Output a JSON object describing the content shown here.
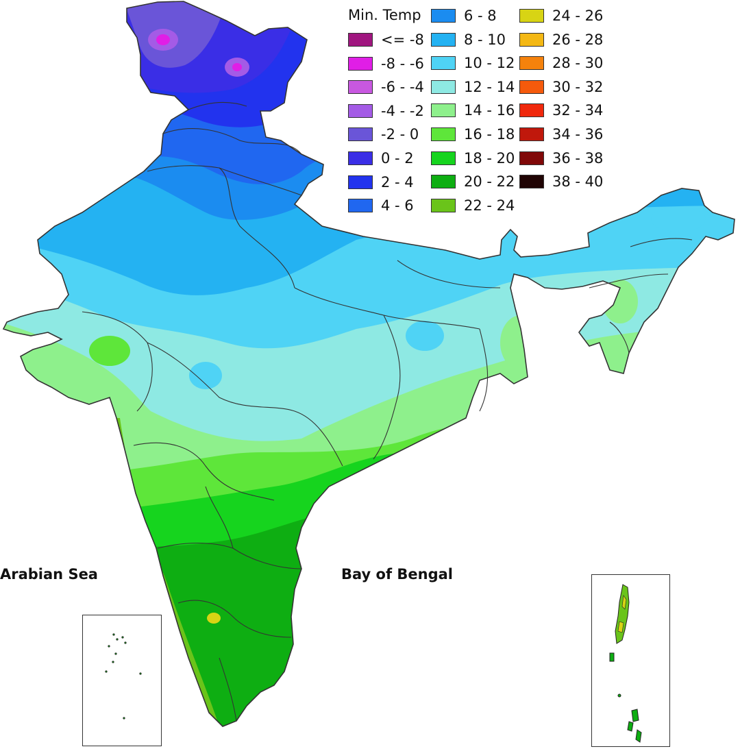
{
  "legend": {
    "title": "Min. Temp",
    "items": [
      {
        "label": "<= -8",
        "color": "#a0167f"
      },
      {
        "label": "-8 - -6",
        "color": "#e01ee6"
      },
      {
        "label": "-6 - -4",
        "color": "#c858e0"
      },
      {
        "label": "-4 - -2",
        "color": "#a45be6"
      },
      {
        "label": "-2 - 0",
        "color": "#6a55d8"
      },
      {
        "label": "0 - 2",
        "color": "#3a2ee6"
      },
      {
        "label": "2 - 4",
        "color": "#2233ee"
      },
      {
        "label": "4 - 6",
        "color": "#2067f0"
      },
      {
        "label": "6 - 8",
        "color": "#1b8cf0"
      },
      {
        "label": "8 - 10",
        "color": "#24b2f2"
      },
      {
        "label": "10 - 12",
        "color": "#4fd3f5"
      },
      {
        "label": "12 - 14",
        "color": "#8ee9e3"
      },
      {
        "label": "14 - 16",
        "color": "#8ef08c"
      },
      {
        "label": "16 - 18",
        "color": "#5ee63a"
      },
      {
        "label": "18 - 20",
        "color": "#16d41e"
      },
      {
        "label": "20 - 22",
        "color": "#0eae12"
      },
      {
        "label": "22 - 24",
        "color": "#6ac41a"
      },
      {
        "label": "24 - 26",
        "color": "#d8d414"
      },
      {
        "label": "26 - 28",
        "color": "#f4b814"
      },
      {
        "label": "28 - 30",
        "color": "#f5820c"
      },
      {
        "label": "30 - 32",
        "color": "#f55a0c"
      },
      {
        "label": "32 - 34",
        "color": "#f0280c"
      },
      {
        "label": "34 - 36",
        "color": "#c0180c"
      },
      {
        "label": "36 - 38",
        "color": "#800808"
      },
      {
        "label": "38 - 40",
        "color": "#200404"
      }
    ]
  },
  "labels": {
    "arabian_sea": "Arabian Sea",
    "bay_of_bengal": "Bay of Bengal"
  },
  "colors": {
    "border": "#333333"
  }
}
